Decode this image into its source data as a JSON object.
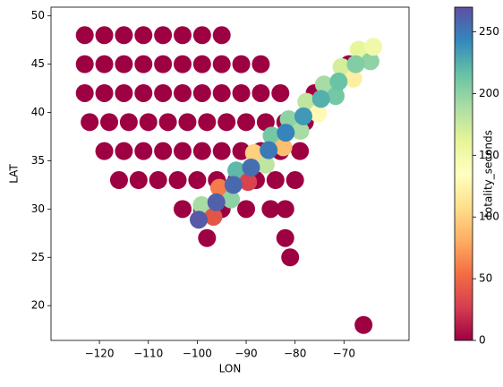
{
  "chart_data": {
    "type": "scatter",
    "x_label": "LON",
    "y_label": "LAT",
    "colorbar_label": "totality_seconds",
    "colormap": "Spectral",
    "xlim": [
      -129.9,
      -56.7
    ],
    "ylim": [
      16.4,
      50.9
    ],
    "clim": [
      0,
      270
    ],
    "xticks": [
      {
        "value": -120,
        "label": "−120"
      },
      {
        "value": -110,
        "label": "−110"
      },
      {
        "value": -100,
        "label": "−100"
      },
      {
        "value": -90,
        "label": "−90"
      },
      {
        "value": -80,
        "label": "−80"
      },
      {
        "value": -70,
        "label": "−70"
      }
    ],
    "yticks": [
      20,
      25,
      30,
      35,
      40,
      45,
      50
    ],
    "cticks": [
      0,
      50,
      100,
      150,
      200,
      250
    ],
    "series": [
      {
        "x": [
          -123,
          -119,
          -115,
          -111,
          -107,
          -103,
          -99,
          -95,
          -123,
          -119,
          -115,
          -111,
          -107,
          -103,
          -99,
          -95,
          -91,
          -87,
          -69,
          -123,
          -119,
          -115,
          -111,
          -107,
          -103,
          -99,
          -95,
          -91,
          -87,
          -83,
          -76,
          -72,
          -122,
          -118,
          -114,
          -110,
          -106,
          -102,
          -98,
          -94,
          -90,
          -86,
          -82,
          -78,
          -119,
          -115,
          -111,
          -107,
          -103,
          -99,
          -95,
          -91,
          -87,
          -83,
          -79,
          -116,
          -112,
          -108,
          -104,
          -100,
          -96,
          -92,
          -88,
          -84,
          -80,
          -103,
          -99,
          -95,
          -90,
          -85,
          -82,
          -98,
          -82,
          -81,
          -66,
          -99.1,
          -95.5,
          -92.0,
          -88.4,
          -84.8,
          -81.3,
          -77.7,
          -74.1,
          -70.5,
          -67.0,
          -96.7,
          -93.1,
          -89.6,
          -86.0,
          -82.4,
          -78.9,
          -75.3,
          -71.7,
          -68.1,
          -64.6,
          -99.7,
          -96.1,
          -92.6,
          -89.0,
          -85.4,
          -81.9,
          -78.3,
          -74.7,
          -71.1,
          -67.6,
          -64.0
        ],
        "y": [
          48,
          48,
          48,
          48,
          48,
          48,
          48,
          48,
          45,
          45,
          45,
          45,
          45,
          45,
          45,
          45,
          45,
          45,
          45,
          42,
          42,
          42,
          42,
          42,
          42,
          42,
          42,
          42,
          42,
          42,
          42,
          42,
          39,
          39,
          39,
          39,
          39,
          39,
          39,
          39,
          39,
          39,
          39,
          39,
          36,
          36,
          36,
          36,
          36,
          36,
          36,
          36,
          36,
          36,
          36,
          33,
          33,
          33,
          33,
          33,
          33,
          33,
          33,
          33,
          33,
          30,
          30,
          30,
          30,
          30,
          30,
          27,
          27,
          25,
          18,
          30.4,
          32.2,
          34.0,
          35.8,
          37.6,
          39.3,
          41.1,
          42.9,
          44.7,
          46.5,
          29.2,
          31.0,
          32.8,
          34.6,
          36.4,
          38.1,
          39.9,
          41.7,
          43.5,
          45.3,
          28.9,
          30.7,
          32.5,
          34.3,
          36.1,
          37.9,
          39.6,
          41.4,
          43.2,
          45.0,
          46.8
        ],
        "c": [
          0,
          0,
          0,
          0,
          0,
          0,
          0,
          0,
          0,
          0,
          0,
          0,
          0,
          0,
          0,
          0,
          0,
          0,
          0,
          0,
          0,
          0,
          0,
          0,
          0,
          0,
          0,
          0,
          0,
          0,
          0,
          0,
          0,
          0,
          0,
          0,
          0,
          0,
          0,
          0,
          0,
          0,
          0,
          0,
          0,
          0,
          0,
          0,
          0,
          0,
          0,
          0,
          0,
          0,
          0,
          0,
          0,
          0,
          0,
          0,
          0,
          0,
          0,
          0,
          0,
          0,
          0,
          0,
          0,
          0,
          0,
          0,
          0,
          0,
          0,
          190,
          60,
          220,
          100,
          210,
          200,
          180,
          190,
          170,
          160,
          40,
          200,
          30,
          180,
          90,
          190,
          130,
          210,
          120,
          200,
          265,
          262,
          258,
          255,
          250,
          245,
          235,
          225,
          215,
          205,
          150
        ]
      }
    ]
  }
}
